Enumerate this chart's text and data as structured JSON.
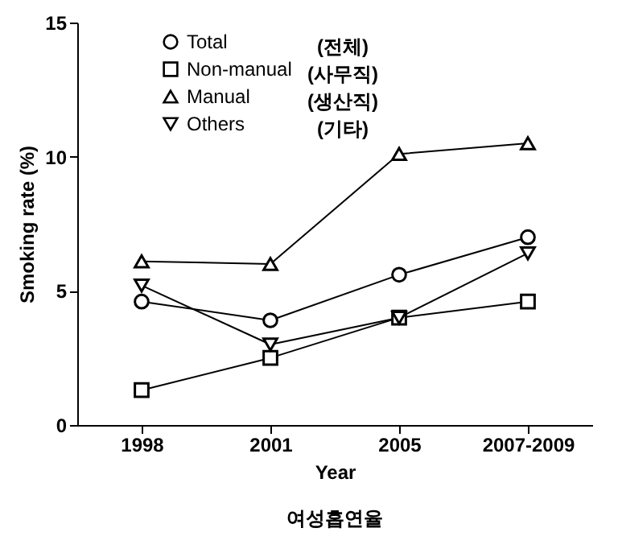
{
  "chart_data": {
    "type": "line",
    "categories": [
      "1998",
      "2001",
      "2005",
      "2007-2009"
    ],
    "xlabel": "Year",
    "ylabel": "Smoking rate (%)",
    "ylim": [
      0,
      15
    ],
    "yticks": [
      0,
      5,
      10,
      15
    ],
    "grid": false,
    "legend": "top left",
    "series": [
      {
        "name": "Total",
        "color": "#000000",
        "marker": "circle",
        "values": [
          4.6,
          3.9,
          5.6,
          7.0
        ]
      },
      {
        "name": "Non-manual",
        "color": "#000000",
        "marker": "square",
        "values": [
          1.3,
          2.5,
          4.0,
          4.6
        ]
      },
      {
        "name": "Manual",
        "color": "#000000",
        "marker": "triangle",
        "values": [
          6.1,
          6.0,
          10.1,
          10.5
        ]
      },
      {
        "name": "Others",
        "color": "#000000",
        "marker": "triangle-down",
        "values": [
          5.2,
          3.0,
          4.0,
          6.4
        ]
      }
    ],
    "annotations": [
      "(전체)",
      "(사무직)",
      "(생산직)",
      "(기타)",
      "여성흡연율"
    ]
  }
}
